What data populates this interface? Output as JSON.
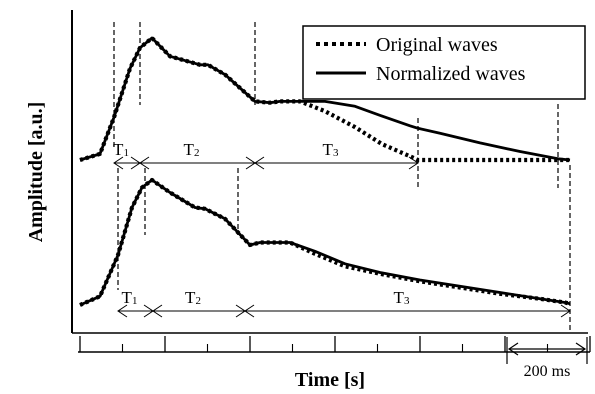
{
  "chart_data": {
    "type": "line",
    "xlabel": "Time [s]",
    "ylabel": "Amplitude [a.u.]",
    "legend": {
      "placement": "top-right",
      "entries": [
        {
          "name": "Original waves",
          "style": "dotted"
        },
        {
          "name": "Normalized waves",
          "style": "solid"
        }
      ]
    },
    "scale_bar_label": "200 ms",
    "scale_bar_ms": 200,
    "grid": false,
    "x_ticks_labeled": false,
    "panels": [
      {
        "name": "upper",
        "series": [
          {
            "name": "Original waves",
            "style": "dotted",
            "x": [
              0,
              20,
              34,
              50,
              60,
              72,
              90,
              120,
              128,
              145,
              175,
              190,
              200,
              220,
              245,
              275,
              302,
              330,
              338,
              360,
              400,
              440,
              478,
              490
            ],
            "y": [
              0.0,
              0.05,
              0.35,
              0.75,
              0.92,
              1.0,
              0.85,
              0.78,
              0.78,
              0.7,
              0.48,
              0.47,
              0.48,
              0.48,
              0.4,
              0.27,
              0.13,
              0.03,
              0.0,
              0.0,
              0.0,
              0.0,
              0.0,
              0.0
            ]
          },
          {
            "name": "Normalized waves",
            "style": "solid",
            "x": [
              0,
              20,
              34,
              50,
              60,
              72,
              90,
              120,
              128,
              145,
              175,
              190,
              200,
              220,
              245,
              275,
              302,
              330,
              338,
              360,
              400,
              440,
              478,
              490
            ],
            "y": [
              0.0,
              0.05,
              0.35,
              0.75,
              0.92,
              1.0,
              0.85,
              0.78,
              0.78,
              0.7,
              0.48,
              0.47,
              0.48,
              0.48,
              0.48,
              0.44,
              0.36,
              0.28,
              0.26,
              0.22,
              0.14,
              0.07,
              0.01,
              0.0
            ]
          }
        ],
        "markers_x": [
          34,
          60,
          175,
          338,
          478
        ],
        "segments": [
          {
            "label": "T",
            "sub": "1",
            "from": 34,
            "to": 60
          },
          {
            "label": "T",
            "sub": "2",
            "from": 60,
            "to": 175
          },
          {
            "label": "T",
            "sub": "3",
            "from": 175,
            "to": 338
          }
        ]
      },
      {
        "name": "lower",
        "series": [
          {
            "name": "Original waves",
            "style": "dotted",
            "x": [
              0,
              20,
              38,
              52,
              62,
              72,
              90,
              115,
              125,
              145,
              170,
              180,
              190,
              210,
              235,
              265,
              300,
              340,
              380,
              420,
              460,
              485,
              490
            ],
            "y": [
              0.0,
              0.07,
              0.4,
              0.78,
              0.94,
              1.0,
              0.9,
              0.78,
              0.77,
              0.69,
              0.48,
              0.5,
              0.5,
              0.5,
              0.41,
              0.31,
              0.25,
              0.19,
              0.14,
              0.09,
              0.05,
              0.02,
              0.01
            ]
          },
          {
            "name": "Normalized waves",
            "style": "solid",
            "x": [
              0,
              20,
              38,
              52,
              62,
              72,
              90,
              115,
              125,
              145,
              170,
              180,
              190,
              210,
              235,
              265,
              300,
              340,
              380,
              420,
              460,
              485,
              490
            ],
            "y": [
              0.0,
              0.07,
              0.4,
              0.78,
              0.94,
              1.0,
              0.9,
              0.78,
              0.77,
              0.69,
              0.48,
              0.5,
              0.5,
              0.5,
              0.43,
              0.33,
              0.26,
              0.2,
              0.15,
              0.1,
              0.05,
              0.02,
              0.01
            ]
          }
        ],
        "markers_x": [
          38,
          65,
          158,
          490
        ],
        "segments": [
          {
            "label": "T",
            "sub": "1",
            "from": 38,
            "to": 73
          },
          {
            "label": "T",
            "sub": "2",
            "from": 73,
            "to": 165
          },
          {
            "label": "T",
            "sub": "3",
            "from": 165,
            "to": 490
          }
        ]
      }
    ]
  }
}
